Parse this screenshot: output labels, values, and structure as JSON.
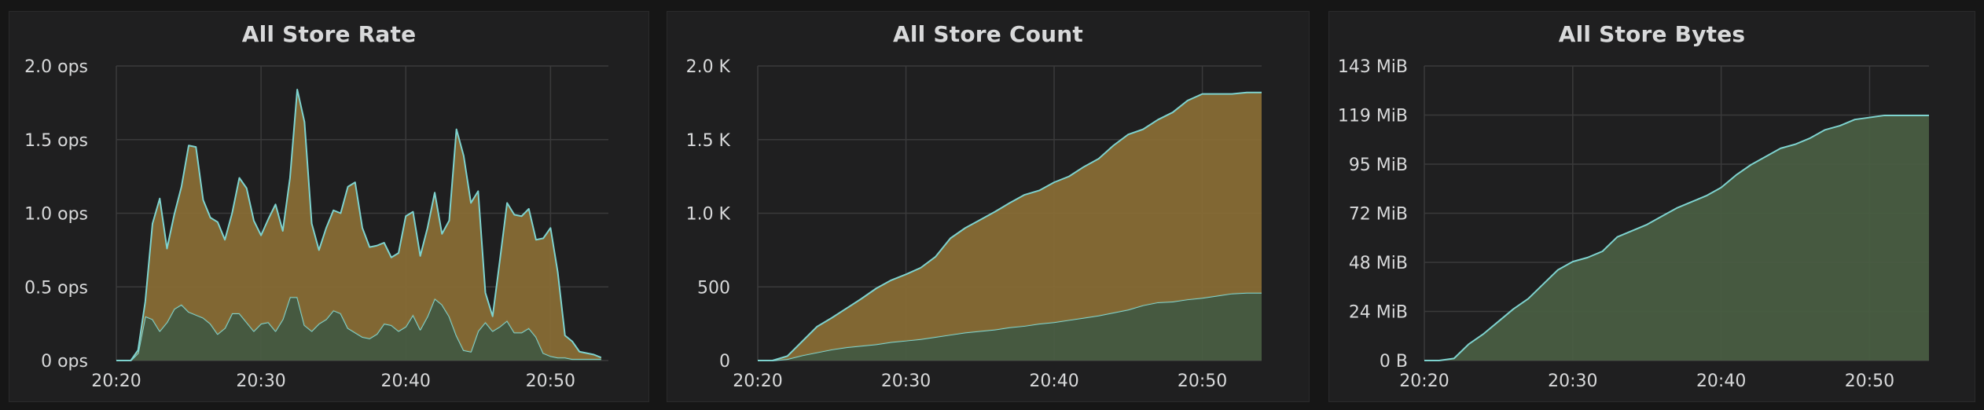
{
  "colors": {
    "background": "#161616",
    "panel": "#1f1f20",
    "line": "#7ed3cf",
    "area_top": "#8a6e35",
    "area_bottom": "#4a5e43",
    "grid": "#3a3a3b",
    "text": "#d8d9da"
  },
  "chart_data": [
    {
      "type": "area",
      "title": "All Store Rate",
      "xlabel": "",
      "ylabel": "",
      "stacked": true,
      "grid": true,
      "xlim_minutes": [
        20.0,
        54.0
      ],
      "ylim": [
        0,
        2.0
      ],
      "y_ticks": [
        "0 ops",
        "0.5 ops",
        "1.0 ops",
        "1.5 ops",
        "2.0 ops"
      ],
      "x_ticks": [
        "20:20",
        "20:30",
        "20:40",
        "20:50"
      ],
      "x": [
        "20:20",
        "20:21",
        "20:21.5",
        "20:22",
        "20:22.5",
        "20:23",
        "20:23.5",
        "20:24",
        "20:24.5",
        "20:25",
        "20:25.5",
        "20:26",
        "20:26.5",
        "20:27",
        "20:27.5",
        "20:28",
        "20:28.5",
        "20:29",
        "20:29.5",
        "20:30",
        "20:30.5",
        "20:31",
        "20:31.5",
        "20:32",
        "20:32.5",
        "20:33",
        "20:33.5",
        "20:34",
        "20:34.5",
        "20:35",
        "20:35.5",
        "20:36",
        "20:36.5",
        "20:37",
        "20:37.5",
        "20:38",
        "20:38.5",
        "20:39",
        "20:39.5",
        "20:40",
        "20:40.5",
        "20:41",
        "20:41.5",
        "20:42",
        "20:42.5",
        "20:43",
        "20:43.5",
        "20:44",
        "20:44.5",
        "20:45",
        "20:45.5",
        "20:46",
        "20:46.5",
        "20:47",
        "20:47.5",
        "20:48",
        "20:48.5",
        "20:49",
        "20:49.5",
        "20:50",
        "20:50.5",
        "20:51",
        "20:51.5",
        "20:52",
        "20:52.5",
        "20:53",
        "20:53.5"
      ],
      "series": [
        {
          "values": [
            0,
            0,
            0.05,
            0.3,
            0.28,
            0.2,
            0.26,
            0.35,
            0.38,
            0.33,
            0.31,
            0.29,
            0.25,
            0.18,
            0.22,
            0.32,
            0.32,
            0.26,
            0.2,
            0.25,
            0.26,
            0.2,
            0.28,
            0.43,
            0.43,
            0.24,
            0.2,
            0.25,
            0.28,
            0.34,
            0.32,
            0.22,
            0.19,
            0.16,
            0.15,
            0.18,
            0.25,
            0.24,
            0.2,
            0.23,
            0.31,
            0.21,
            0.3,
            0.42,
            0.38,
            0.3,
            0.17,
            0.07,
            0.06,
            0.2,
            0.26,
            0.2,
            0.23,
            0.27,
            0.19,
            0.19,
            0.22,
            0.16,
            0.05,
            0.03,
            0.02,
            0.02,
            0.01,
            0.01,
            0.01,
            0.01,
            0.01
          ]
        },
        {
          "values": [
            0,
            0,
            0.02,
            0.1,
            0.65,
            0.9,
            0.5,
            0.64,
            0.8,
            1.13,
            1.14,
            0.8,
            0.72,
            0.76,
            0.6,
            0.68,
            0.92,
            0.91,
            0.75,
            0.6,
            0.7,
            0.86,
            0.6,
            0.81,
            1.41,
            1.38,
            0.73,
            0.5,
            0.62,
            0.68,
            0.68,
            0.96,
            1.02,
            0.74,
            0.62,
            0.6,
            0.55,
            0.46,
            0.53,
            0.75,
            0.7,
            0.5,
            0.6,
            0.72,
            0.48,
            0.65,
            1.4,
            1.32,
            1.01,
            0.95,
            0.2,
            0.1,
            0.45,
            0.8,
            0.8,
            0.79,
            0.81,
            0.66,
            0.78,
            0.87,
            0.58,
            0.15,
            0.12,
            0.05,
            0.04,
            0.03,
            0.01
          ]
        }
      ]
    },
    {
      "type": "area",
      "title": "All Store Count",
      "xlabel": "",
      "ylabel": "",
      "stacked": true,
      "grid": true,
      "xlim_minutes": [
        20.0,
        54.0
      ],
      "ylim": [
        0,
        2000
      ],
      "y_ticks": [
        "0",
        "500",
        "1.0 K",
        "1.5 K",
        "2.0 K"
      ],
      "x_ticks": [
        "20:20",
        "20:30",
        "20:40",
        "20:50"
      ],
      "x": [
        "20:20",
        "20:21",
        "20:22",
        "20:23",
        "20:24",
        "20:25",
        "20:26",
        "20:27",
        "20:28",
        "20:29",
        "20:30",
        "20:31",
        "20:32",
        "20:33",
        "20:34",
        "20:35",
        "20:36",
        "20:37",
        "20:38",
        "20:39",
        "20:40",
        "20:41",
        "20:42",
        "20:43",
        "20:44",
        "20:45",
        "20:46",
        "20:47",
        "20:48",
        "20:49",
        "20:50",
        "20:51",
        "20:52",
        "20:53",
        "20:54"
      ],
      "series": [
        {
          "values": [
            0,
            0,
            10,
            35,
            55,
            75,
            90,
            100,
            110,
            125,
            135,
            145,
            160,
            175,
            190,
            200,
            210,
            225,
            235,
            250,
            260,
            275,
            290,
            305,
            325,
            345,
            375,
            395,
            400,
            415,
            425,
            440,
            455,
            460,
            460
          ]
        },
        {
          "values": [
            0,
            0,
            20,
            95,
            175,
            215,
            265,
            320,
            380,
            420,
            450,
            485,
            545,
            655,
            710,
            755,
            800,
            845,
            890,
            905,
            950,
            975,
            1025,
            1065,
            1135,
            1190,
            1195,
            1240,
            1285,
            1350,
            1385,
            1370,
            1355,
            1360,
            1360
          ]
        }
      ]
    },
    {
      "type": "area",
      "title": "All Store Bytes",
      "xlabel": "",
      "ylabel": "",
      "stacked": true,
      "grid": true,
      "xlim_minutes": [
        20.0,
        54.0
      ],
      "ylim": [
        0,
        143
      ],
      "y_ticks": [
        "0 B",
        "24 MiB",
        "48 MiB",
        "72 MiB",
        "95 MiB",
        "119 MiB",
        "143 MiB"
      ],
      "x_ticks": [
        "20:20",
        "20:30",
        "20:40",
        "20:50"
      ],
      "x": [
        "20:20",
        "20:21",
        "20:22",
        "20:23",
        "20:24",
        "20:25",
        "20:26",
        "20:27",
        "20:28",
        "20:29",
        "20:30",
        "20:31",
        "20:32",
        "20:33",
        "20:34",
        "20:35",
        "20:36",
        "20:37",
        "20:38",
        "20:39",
        "20:40",
        "20:41",
        "20:42",
        "20:43",
        "20:44",
        "20:45",
        "20:46",
        "20:47",
        "20:48",
        "20:49",
        "20:50",
        "20:51",
        "20:52",
        "20:53",
        "20:54"
      ],
      "series": [
        {
          "values": [
            0,
            0,
            1,
            8,
            13,
            19,
            25,
            30,
            37,
            44,
            48,
            50,
            53,
            60,
            63,
            66,
            70,
            74,
            77,
            80,
            84,
            90,
            95,
            99,
            103,
            105,
            108,
            112,
            114,
            117,
            118,
            119,
            119,
            119,
            119
          ]
        }
      ]
    }
  ]
}
